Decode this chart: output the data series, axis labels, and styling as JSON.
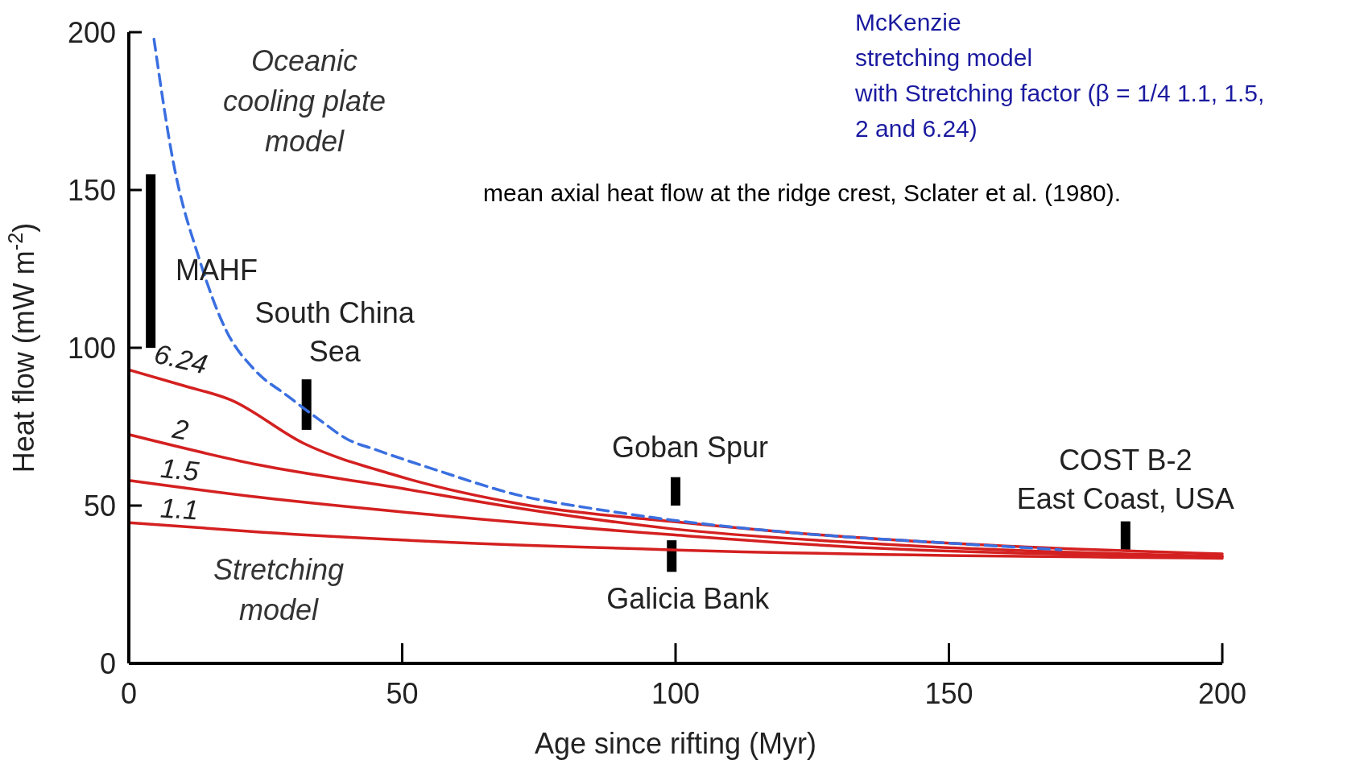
{
  "chart_data": {
    "type": "line",
    "xlabel": "Age since rifting (Myr)",
    "ylabel": "Heat flow (mW m$^{-2}$)",
    "xlim": [
      0,
      200
    ],
    "ylim": [
      0,
      200
    ],
    "xticks": [
      0,
      50,
      100,
      150,
      200
    ],
    "yticks": [
      0,
      50,
      100,
      150,
      200
    ],
    "grid": false,
    "legend": false,
    "marker": "none",
    "series": [
      {
        "line_style": "dashed",
        "color": "#3a6fe0",
        "x": [
          4.6,
          8,
          13,
          17.8,
          23,
          29,
          35,
          40,
          45,
          56,
          72,
          85,
          99,
          120,
          151,
          170.5
        ],
        "values": [
          197.8,
          160,
          127.5,
          105.5,
          93,
          84.8,
          77,
          71,
          67.8,
          61.4,
          53,
          49,
          45.5,
          41.6,
          38,
          36
        ]
      },
      {
        "name": "6.24",
        "line_style": "solid",
        "color": "#d42020",
        "x": [
          0,
          10,
          18.6,
          32,
          48,
          72,
          99,
          120,
          151,
          200
        ],
        "values": [
          93,
          88,
          83.5,
          69.7,
          60,
          50.4,
          45,
          41.6,
          38,
          34.7
        ]
      },
      {
        "name": "2",
        "line_style": "solid",
        "color": "#d42020",
        "x": [
          0,
          24,
          48,
          72,
          99,
          135.5,
          200
        ],
        "values": [
          72.5,
          62.8,
          56,
          49,
          42.7,
          38,
          33.9
        ]
      },
      {
        "name": "1.5",
        "line_style": "solid",
        "color": "#d42020",
        "x": [
          0,
          24,
          56,
          99,
          135.5,
          200
        ],
        "values": [
          58,
          52.6,
          47,
          40.8,
          36.6,
          33.9
        ]
      },
      {
        "name": "1.1",
        "line_style": "solid",
        "color": "#d42020",
        "x": [
          0,
          24,
          56,
          99,
          200
        ],
        "values": [
          44.6,
          41.6,
          38.6,
          36,
          33.3
        ]
      },
      {
        "type": "bar",
        "color": "#000000",
        "x": [
          4,
          32.5,
          99.3,
          100,
          182.3
        ],
        "base": [
          100,
          74,
          29,
          50,
          36
        ],
        "values": [
          55,
          16,
          10,
          9,
          9
        ]
      }
    ],
    "annotations": [
      "MAHF",
      {
        "text": "South China\nSea",
        "x": 32.5,
        "y": 90
      },
      {
        "text": "Goban Spur",
        "x": 100,
        "y": 59
      },
      {
        "text": "Galicia Bank",
        "x": 99.3,
        "y": 29
      },
      {
        "text": "COST B-2\nEast Coast, USA",
        "x": 182.3,
        "y": 45
      },
      "Oceanic\ncooling plate\nmodel",
      "Stretching\nmodel",
      "McKenzie\nstretching model\nwith Stretching factor (β = 1/4 1.1, 1.5,\n2 and 6.24)",
      "mean axial heat flow at the ridge crest, Sclater et al. (1980)."
    ]
  }
}
